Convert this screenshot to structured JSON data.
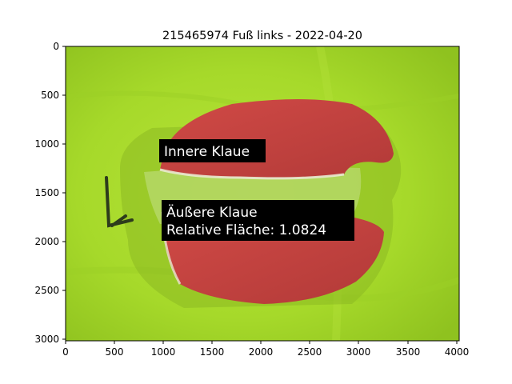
{
  "title": "215465974 Fuß links - 2022-04-20",
  "axes": {
    "x_ticks": [
      "0",
      "500",
      "1000",
      "1500",
      "2000",
      "2500",
      "3000",
      "3500",
      "4000"
    ],
    "y_ticks": [
      "0",
      "500",
      "1000",
      "1500",
      "2000",
      "2500",
      "3000"
    ],
    "x_range": [
      0,
      4032
    ],
    "y_range": [
      0,
      3024
    ],
    "y_inverted": true
  },
  "annotations": {
    "inner": "Innere Klaue",
    "outer_line1": "Äußere Klaue",
    "outer_line2": "Relative Fläche: 1.0824"
  },
  "colors": {
    "background_fabric": "#a9dd2a",
    "segmentation_overlay": "#c9423f",
    "label_box": "#000000",
    "label_text": "#ffffff"
  }
}
